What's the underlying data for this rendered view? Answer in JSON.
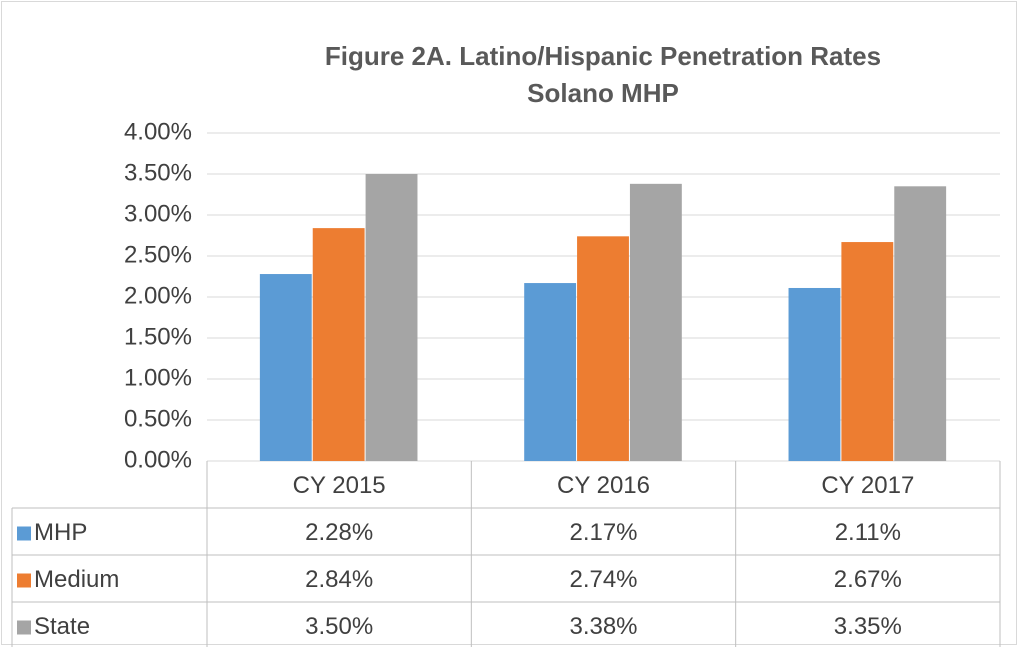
{
  "chart_data": {
    "type": "bar",
    "title": [
      "Figure 2A. Latino/Hispanic Penetration Rates",
      "Solano MHP"
    ],
    "categories": [
      "CY 2015",
      "CY 2016",
      "CY 2017"
    ],
    "series": [
      {
        "name": "MHP",
        "color": "#5b9bd5",
        "values": [
          2.28,
          2.17,
          2.11
        ],
        "value_labels": [
          "2.28%",
          "2.17%",
          "2.11%"
        ]
      },
      {
        "name": "Medium",
        "color": "#ed7d31",
        "values": [
          2.84,
          2.74,
          2.67
        ],
        "value_labels": [
          "2.84%",
          "2.74%",
          "2.67%"
        ]
      },
      {
        "name": "State",
        "color": "#a5a5a5",
        "values": [
          3.5,
          3.38,
          3.35
        ],
        "value_labels": [
          "3.50%",
          "3.38%",
          "3.35%"
        ]
      }
    ],
    "ylim": [
      0,
      4
    ],
    "yticks": [
      {
        "value": 0,
        "label": "0.00%"
      },
      {
        "value": 0.5,
        "label": "0.50%"
      },
      {
        "value": 1,
        "label": "1.00%"
      },
      {
        "value": 1.5,
        "label": "1.50%"
      },
      {
        "value": 2,
        "label": "2.00%"
      },
      {
        "value": 2.5,
        "label": "2.50%"
      },
      {
        "value": 3,
        "label": "3.00%"
      },
      {
        "value": 3.5,
        "label": "3.50%"
      },
      {
        "value": 4,
        "label": "4.00%"
      }
    ],
    "grid": true
  }
}
